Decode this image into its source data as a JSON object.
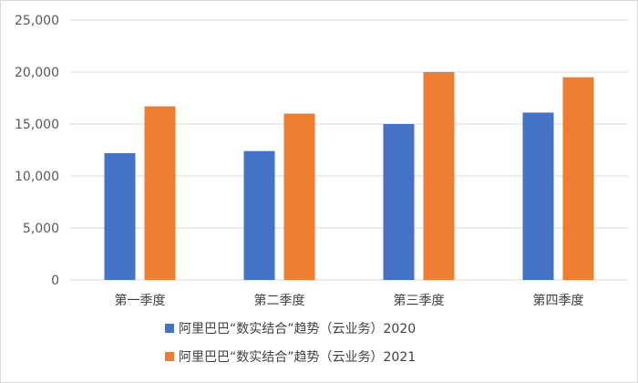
{
  "chart_data": {
    "type": "bar",
    "title": "",
    "xlabel": "",
    "ylabel": "",
    "categories": [
      "第一季度",
      "第二季度",
      "第三季度",
      "第四季度"
    ],
    "series": [
      {
        "name": "阿里巴巴“数实结合”趋势（云业务）2020",
        "values": [
          12200,
          12400,
          15000,
          16100
        ],
        "color": "#4472c4"
      },
      {
        "name": "阿里巴巴“数实结合”趋势（云业务）2021",
        "values": [
          16700,
          16000,
          20000,
          19500
        ],
        "color": "#ed7d31"
      }
    ],
    "ylim": [
      0,
      25000
    ],
    "yticks": [
      0,
      5000,
      10000,
      15000,
      20000,
      25000
    ],
    "ytick_labels": [
      "0",
      "5,000",
      "10,000",
      "15,000",
      "20,000",
      "25,000"
    ],
    "grid": true,
    "gridline_color": "#d9d9d9",
    "legend_position": "bottom"
  }
}
